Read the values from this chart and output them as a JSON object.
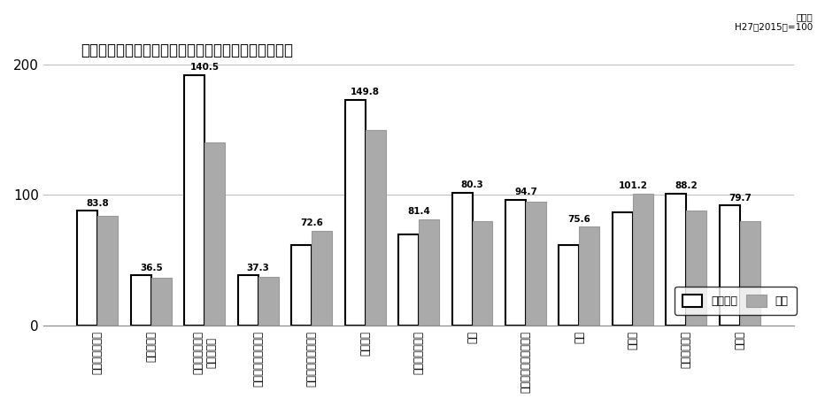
{
  "title": "業種別の生産指数（原指数）の当月と前年同月の比較",
  "subtitle": "原指数\nH27（2015）=100",
  "categories": [
    "鉱工業（総合）",
    "鉄鋼・金属",
    "汎用・生産用・\n業務用機械",
    "電子部品・デバイス",
    "電気・情報通信機械",
    "輸送機械",
    "窯業・土石製品",
    "化学",
    "パルプ・紙・紙加工品",
    "繊維",
    "食料品",
    "木材・木製品",
    "その他"
  ],
  "prev_year": [
    88.0,
    38.5,
    192.0,
    38.5,
    62.0,
    173.0,
    70.0,
    102.0,
    96.5,
    62.0,
    87.0,
    101.0,
    92.0
  ],
  "current": [
    83.8,
    36.5,
    140.5,
    37.3,
    72.6,
    149.8,
    81.4,
    80.3,
    94.7,
    75.6,
    101.2,
    88.2,
    79.7
  ],
  "labels": [
    "83.8",
    "36.5",
    "140.5",
    "37.3",
    "72.6",
    "149.8",
    "81.4",
    "80.3",
    "94.7",
    "75.6",
    "101.2",
    "88.2",
    "79.7"
  ],
  "prev_color": "#ffffff",
  "prev_edgecolor": "#000000",
  "curr_color": "#aaaaaa",
  "curr_edgecolor": "#999999",
  "ylim": [
    0,
    200
  ],
  "yticks": [
    0,
    100,
    200
  ],
  "bg_color": "#ffffff",
  "grid_color": "#bbbbbb",
  "bar_width": 0.38,
  "legend_labels": [
    "前年同月",
    "当月"
  ]
}
